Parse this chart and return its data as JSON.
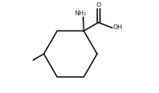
{
  "background": "#ffffff",
  "line_color": "#1a1a1a",
  "line_width": 1.4,
  "nh2_label": "NH₂",
  "oh_label": "OH",
  "o_label": "O"
}
